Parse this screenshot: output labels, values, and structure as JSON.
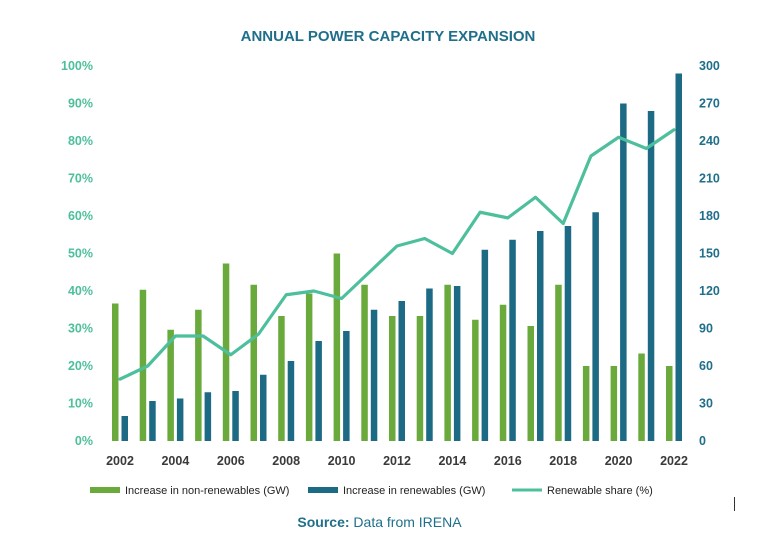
{
  "chart_data": {
    "type": "bar",
    "title": "ANNUAL POWER CAPACITY EXPANSION",
    "categories": [
      2002,
      2003,
      2004,
      2005,
      2006,
      2007,
      2008,
      2009,
      2010,
      2011,
      2012,
      2013,
      2014,
      2015,
      2016,
      2017,
      2018,
      2019,
      2020,
      2021,
      2022
    ],
    "x_tick_labels": [
      "2002",
      "2004",
      "2006",
      "2008",
      "2010",
      "2012",
      "2014",
      "2016",
      "2018",
      "2020",
      "2022"
    ],
    "left_axis": {
      "ylim": [
        0,
        100
      ],
      "ticks": [
        "0%",
        "10%",
        "20%",
        "30%",
        "40%",
        "50%",
        "60%",
        "70%",
        "80%",
        "90%",
        "100%"
      ],
      "color": "#4dbf9c"
    },
    "right_axis": {
      "ylim": [
        0,
        300
      ],
      "ticks": [
        "0",
        "30",
        "60",
        "90",
        "120",
        "150",
        "180",
        "210",
        "240",
        "270",
        "300"
      ],
      "color": "#1f6f8b"
    },
    "series": [
      {
        "name": "Increase in non-renewables (GW)",
        "kind": "bar",
        "axis": "right",
        "color": "#6aaa3c",
        "values": [
          110,
          121,
          89,
          105,
          142,
          125,
          100,
          118,
          150,
          125,
          100,
          100,
          125,
          97,
          109,
          92,
          125,
          60,
          60,
          70,
          60
        ]
      },
      {
        "name": "Increase in renewables (GW)",
        "kind": "bar",
        "axis": "right",
        "color": "#1d6a85",
        "values": [
          20,
          32,
          34,
          39,
          40,
          53,
          64,
          80,
          88,
          105,
          112,
          122,
          124,
          153,
          161,
          168,
          172,
          183,
          270,
          264,
          294
        ]
      },
      {
        "name": "Renewable share (%)",
        "kind": "line",
        "axis": "left",
        "color": "#4dbf9c",
        "values": [
          16.5,
          20,
          28,
          28,
          23,
          28.5,
          39,
          40,
          38,
          45,
          52,
          54,
          50,
          61,
          59.5,
          65,
          58,
          76,
          81,
          78,
          83
        ]
      }
    ],
    "legend_position": "bottom",
    "grid": false
  },
  "source": {
    "label": "Source:",
    "text": " Data from IRENA"
  },
  "colors": {
    "title": "#1f6f8b",
    "source_label": "#1f6f8b",
    "source_text": "#1f6f8b"
  }
}
